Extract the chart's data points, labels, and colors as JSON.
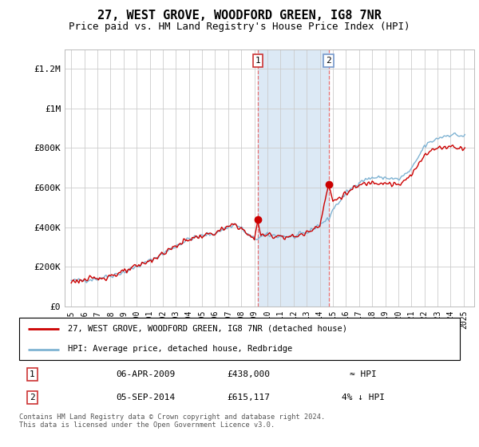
{
  "title": "27, WEST GROVE, WOODFORD GREEN, IG8 7NR",
  "subtitle": "Price paid vs. HM Land Registry's House Price Index (HPI)",
  "title_fontsize": 11,
  "subtitle_fontsize": 9,
  "ylabel_ticks": [
    "£0",
    "£200K",
    "£400K",
    "£600K",
    "£800K",
    "£1M",
    "£1.2M"
  ],
  "ytick_vals": [
    0,
    200000,
    400000,
    600000,
    800000,
    1000000,
    1200000
  ],
  "ylim": [
    0,
    1300000
  ],
  "xlim_start": 1994.5,
  "xlim_end": 2025.8,
  "xlabel_years": [
    "1995",
    "1996",
    "1997",
    "1998",
    "1999",
    "2000",
    "2001",
    "2002",
    "2003",
    "2004",
    "2005",
    "2006",
    "2007",
    "2008",
    "2009",
    "2010",
    "2011",
    "2012",
    "2013",
    "2014",
    "2015",
    "2016",
    "2017",
    "2018",
    "2019",
    "2020",
    "2021",
    "2022",
    "2023",
    "2024",
    "2025"
  ],
  "sale1_x": 2009.25,
  "sale1_y": 438000,
  "sale2_x": 2014.67,
  "sale2_y": 615117,
  "shade_color": "#dce9f5",
  "line_color_red": "#cc0000",
  "line_color_blue": "#7fb3d3",
  "grid_color": "#cccccc",
  "background_color": "#ffffff",
  "legend_line1": "27, WEST GROVE, WOODFORD GREEN, IG8 7NR (detached house)",
  "legend_line2": "HPI: Average price, detached house, Redbridge",
  "table_row1_num": "1",
  "table_row1_date": "06-APR-2009",
  "table_row1_price": "£438,000",
  "table_row1_hpi": "≈ HPI",
  "table_row2_num": "2",
  "table_row2_date": "05-SEP-2014",
  "table_row2_price": "£615,117",
  "table_row2_hpi": "4% ↓ HPI",
  "footer": "Contains HM Land Registry data © Crown copyright and database right 2024.\nThis data is licensed under the Open Government Licence v3.0.",
  "marker_color": "#cc0000",
  "marker_size": 6
}
